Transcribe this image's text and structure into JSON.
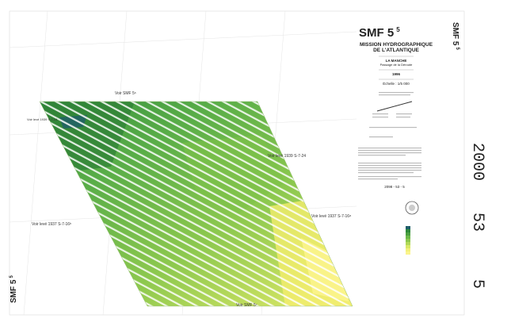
{
  "sheet": {
    "title": "SMF 5",
    "title_sup": "5",
    "organisation": [
      "MISSION HYDROGRAPHIQUE",
      "DE L'ATLANTIQUE"
    ],
    "region": "LA MANCHE",
    "area": "Passage de la Déroute",
    "year": "1996",
    "scale": "Échelle : 1/5 000",
    "reference": "2098 - 53 - 5",
    "side_codes": [
      "2000",
      "53",
      "5"
    ]
  },
  "map_labels": {
    "top": "Voir SMF 5⁶",
    "top_left": "Voir levé 1939 S-7-24",
    "mid_right": "Voir levé 1939 S-7-24",
    "left": "Voir levé 1937 S-7-16ᵇ",
    "right": "Voir levé 1937 S-7-16ᵃ",
    "bottom": "Voir SMF 5⁷"
  }
}
